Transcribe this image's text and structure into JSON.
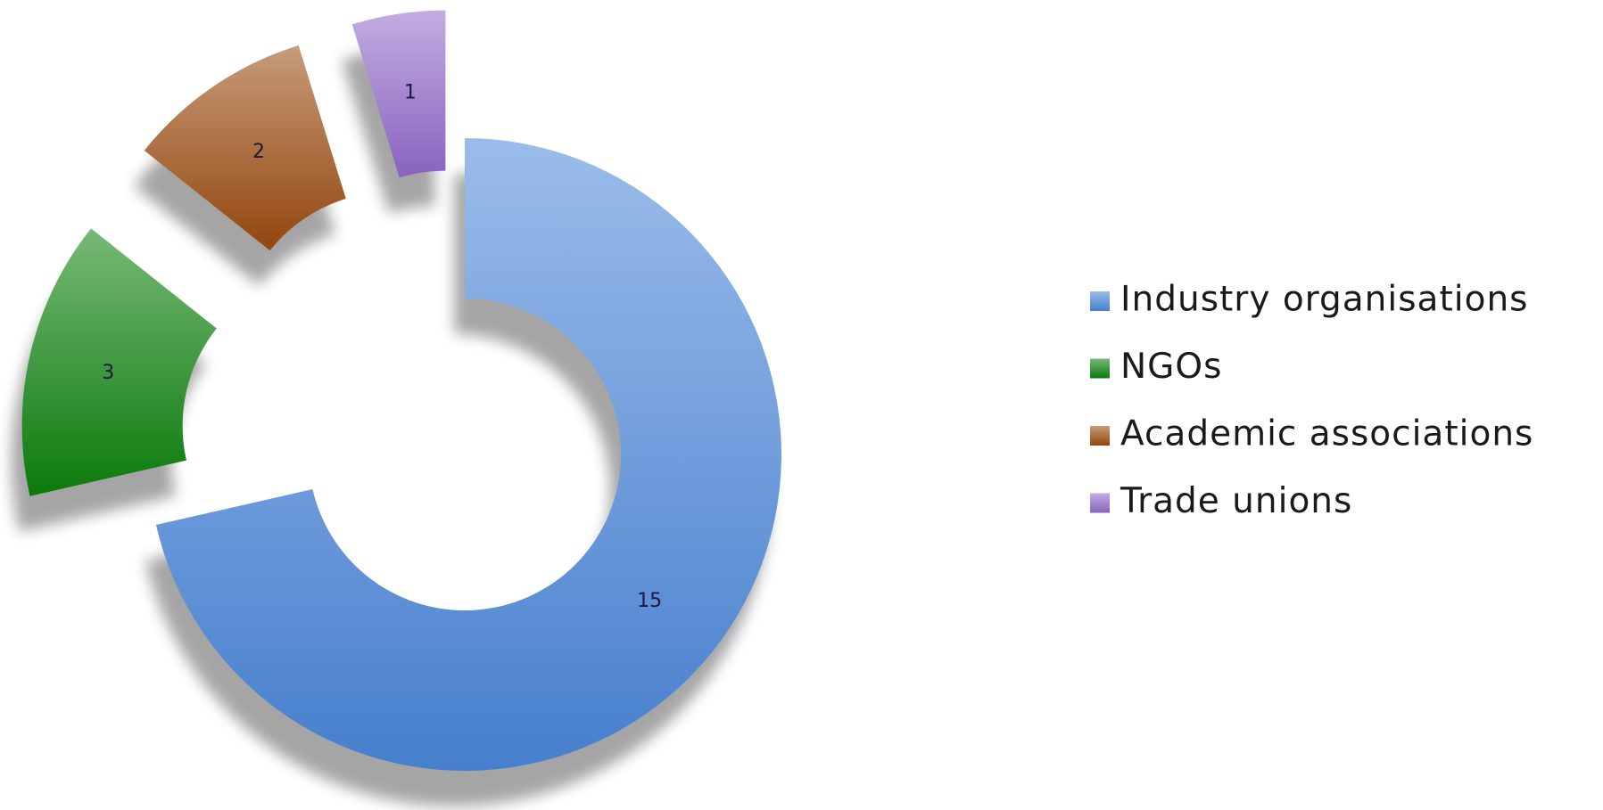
{
  "chart_data": {
    "type": "donut",
    "categories": [
      "Industry organisations",
      "NGOs",
      "Academic associations",
      "Trade unions"
    ],
    "values": [
      15,
      3,
      2,
      1
    ],
    "colors": [
      "#4a86d8",
      "#0a800a",
      "#9a4a0e",
      "#9068c8"
    ]
  }
}
